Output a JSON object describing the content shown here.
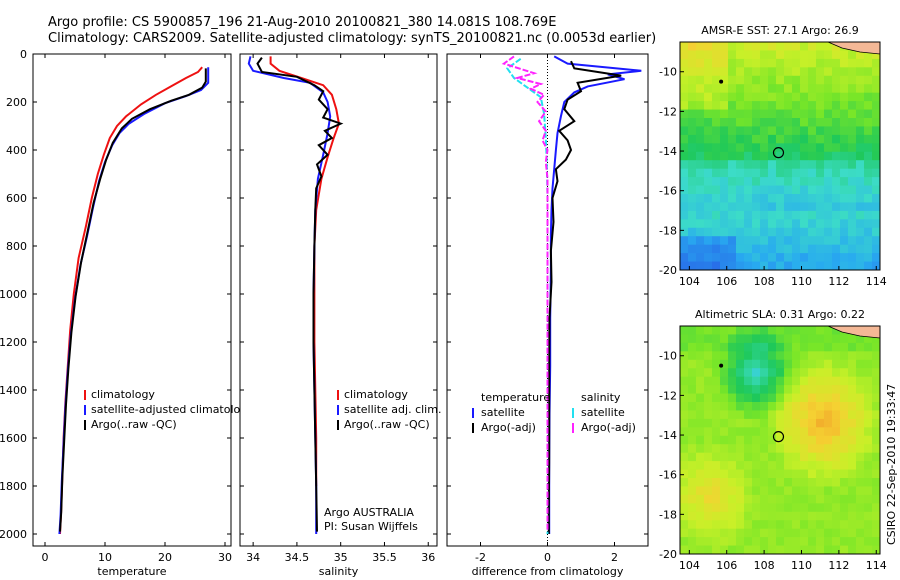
{
  "header": {
    "line1": "Argo profile: CS 5900857_196 21-Aug-2010 20100821_380 14.081S 108.769E",
    "line2": "Climatology: CARS2009. Satellite-adjusted climatology: synTS_20100821.nc (0.0053d earlier)"
  },
  "footer_stamp": "CSIRO 22-Sep-2010 19:33:47",
  "colors": {
    "climatology": "#ee1111",
    "satellite": "#1a1aff",
    "argo": "#000000",
    "sal_satellite": "#22e0f0",
    "sal_argo": "#ff22ff"
  },
  "chart_data": [
    {
      "type": "line",
      "xlabel": "temperature",
      "ylabel": "",
      "xlim": [
        -2,
        31
      ],
      "ylim": [
        2050,
        0
      ],
      "y_inverted": true,
      "xticks": [
        0,
        10,
        20,
        30
      ],
      "yticks": [
        0,
        200,
        400,
        600,
        800,
        1000,
        1200,
        1400,
        1600,
        1800,
        2000
      ],
      "legend": {
        "placement": "lower-right",
        "entries": [
          "climatology",
          "satellite-adjusted climatology",
          "Argo(..raw -QC)"
        ]
      },
      "series": [
        {
          "name": "climatology",
          "points": [
            [
              26.2,
              55
            ],
            [
              25.5,
              75
            ],
            [
              23.5,
              100
            ],
            [
              21.0,
              135
            ],
            [
              18.5,
              170
            ],
            [
              16.0,
              210
            ],
            [
              13.5,
              260
            ],
            [
              12.0,
              300
            ],
            [
              10.8,
              350
            ],
            [
              9.8,
              420
            ],
            [
              8.8,
              500
            ],
            [
              7.8,
              600
            ],
            [
              6.8,
              720
            ],
            [
              5.6,
              850
            ],
            [
              4.8,
              1000
            ],
            [
              4.2,
              1150
            ],
            [
              3.8,
              1300
            ],
            [
              3.4,
              1450
            ],
            [
              3.1,
              1600
            ],
            [
              2.9,
              1750
            ],
            [
              2.7,
              1900
            ],
            [
              2.5,
              2000
            ]
          ]
        },
        {
          "name": "satellite-adjusted climatology",
          "points": [
            [
              27.2,
              55
            ],
            [
              27.2,
              120
            ],
            [
              26.0,
              150
            ],
            [
              23.5,
              175
            ],
            [
              20.0,
              205
            ],
            [
              16.5,
              250
            ],
            [
              14.0,
              290
            ],
            [
              12.4,
              330
            ],
            [
              11.2,
              380
            ],
            [
              10.0,
              450
            ],
            [
              9.0,
              530
            ],
            [
              8.0,
              640
            ],
            [
              7.0,
              760
            ],
            [
              5.9,
              880
            ],
            [
              5.0,
              1020
            ],
            [
              4.3,
              1170
            ],
            [
              3.8,
              1320
            ],
            [
              3.4,
              1470
            ],
            [
              3.1,
              1620
            ],
            [
              2.8,
              1780
            ],
            [
              2.6,
              1920
            ],
            [
              2.4,
              2000
            ]
          ]
        },
        {
          "name": "Argo(..raw -QC)",
          "points": [
            [
              26.8,
              60
            ],
            [
              26.8,
              115
            ],
            [
              26.2,
              140
            ],
            [
              24.0,
              170
            ],
            [
              21.0,
              195
            ],
            [
              17.5,
              230
            ],
            [
              14.5,
              270
            ],
            [
              12.8,
              310
            ],
            [
              11.3,
              370
            ],
            [
              10.2,
              440
            ],
            [
              9.2,
              520
            ],
            [
              8.1,
              620
            ],
            [
              7.1,
              740
            ],
            [
              6.0,
              870
            ],
            [
              5.1,
              1010
            ],
            [
              4.4,
              1160
            ],
            [
              3.9,
              1310
            ],
            [
              3.5,
              1460
            ],
            [
              3.2,
              1610
            ],
            [
              2.9,
              1760
            ],
            [
              2.7,
              1910
            ],
            [
              2.5,
              1990
            ]
          ]
        }
      ]
    },
    {
      "type": "line",
      "xlabel": "salinity",
      "ylabel": "",
      "xlim": [
        33.85,
        36.1
      ],
      "ylim": [
        2050,
        0
      ],
      "y_inverted": true,
      "xticks": [
        34,
        34.5,
        35,
        35.5,
        36
      ],
      "xtick_labels": [
        "34",
        "34.5",
        "35",
        "35.5",
        "36"
      ],
      "legend": {
        "placement": "lower-right",
        "entries": [
          "climatology",
          "satellite adj. clim.",
          "Argo(..raw -QC)"
        ]
      },
      "annotations": [
        "Argo AUSTRALIA",
        "PI: Susan Wijffels"
      ],
      "series": [
        {
          "name": "climatology",
          "points": [
            [
              34.2,
              10
            ],
            [
              34.2,
              40
            ],
            [
              34.3,
              70
            ],
            [
              34.55,
              100
            ],
            [
              34.8,
              130
            ],
            [
              34.9,
              170
            ],
            [
              34.95,
              230
            ],
            [
              34.98,
              290
            ],
            [
              34.92,
              350
            ],
            [
              34.85,
              430
            ],
            [
              34.78,
              520
            ],
            [
              34.72,
              650
            ],
            [
              34.7,
              800
            ],
            [
              34.7,
              1000
            ],
            [
              34.7,
              1200
            ],
            [
              34.71,
              1400
            ],
            [
              34.72,
              1600
            ],
            [
              34.72,
              1800
            ]
          ]
        },
        {
          "name": "satellite adj. clim.",
          "points": [
            [
              33.97,
              10
            ],
            [
              33.95,
              40
            ],
            [
              34.0,
              70
            ],
            [
              34.35,
              100
            ],
            [
              34.65,
              120
            ],
            [
              34.8,
              160
            ],
            [
              34.85,
              200
            ],
            [
              34.88,
              260
            ],
            [
              34.85,
              330
            ],
            [
              34.8,
              420
            ],
            [
              34.74,
              520
            ],
            [
              34.71,
              650
            ],
            [
              34.7,
              800
            ],
            [
              34.69,
              1000
            ],
            [
              34.69,
              1200
            ],
            [
              34.7,
              1400
            ],
            [
              34.71,
              1600
            ],
            [
              34.72,
              1800
            ],
            [
              34.72,
              2000
            ]
          ]
        },
        {
          "name": "Argo(..raw -QC)",
          "points": [
            [
              34.1,
              15
            ],
            [
              34.05,
              40
            ],
            [
              34.1,
              75
            ],
            [
              34.5,
              95
            ],
            [
              34.7,
              130
            ],
            [
              34.8,
              155
            ],
            [
              34.75,
              190
            ],
            [
              34.85,
              230
            ],
            [
              34.8,
              265
            ],
            [
              35.0,
              290
            ],
            [
              34.82,
              320
            ],
            [
              34.9,
              350
            ],
            [
              34.75,
              380
            ],
            [
              34.85,
              420
            ],
            [
              34.73,
              460
            ],
            [
              34.78,
              510
            ],
            [
              34.72,
              560
            ],
            [
              34.71,
              650
            ],
            [
              34.7,
              800
            ],
            [
              34.69,
              1000
            ],
            [
              34.69,
              1200
            ],
            [
              34.7,
              1400
            ],
            [
              34.71,
              1600
            ],
            [
              34.72,
              1800
            ],
            [
              34.73,
              1990
            ]
          ]
        }
      ]
    },
    {
      "type": "line",
      "xlabel": "difference from climatology",
      "ylabel": "",
      "xlim": [
        -3,
        3
      ],
      "ylim": [
        2050,
        0
      ],
      "y_inverted": true,
      "xticks": [
        -2,
        0,
        2
      ],
      "legend": {
        "placement": "lower-center",
        "groups": [
          {
            "heading": "temperature",
            "entries": [
              "satellite",
              "Argo(-adj)"
            ]
          },
          {
            "heading": "salinity",
            "entries": [
              "satellite",
              "Argo(-adj)"
            ]
          }
        ]
      },
      "series": [
        {
          "name": "temperature satellite",
          "color_key": "satellite",
          "points": [
            [
              0.2,
              10
            ],
            [
              0.6,
              40
            ],
            [
              2.8,
              70
            ],
            [
              1.8,
              85
            ],
            [
              2.3,
              105
            ],
            [
              1.2,
              135
            ],
            [
              0.8,
              160
            ],
            [
              0.5,
              200
            ],
            [
              0.4,
              260
            ],
            [
              0.3,
              330
            ],
            [
              0.25,
              400
            ],
            [
              0.2,
              480
            ],
            [
              0.15,
              560
            ],
            [
              0.12,
              650
            ],
            [
              0.1,
              750
            ],
            [
              0.1,
              900
            ],
            [
              0.08,
              1100
            ],
            [
              0.08,
              1300
            ],
            [
              0.06,
              1500
            ],
            [
              0.05,
              1700
            ],
            [
              0.05,
              1900
            ],
            [
              0.05,
              2000
            ]
          ]
        },
        {
          "name": "temperature Argo(-adj)",
          "color_key": "argo",
          "points": [
            [
              0.7,
              30
            ],
            [
              0.8,
              60
            ],
            [
              2.2,
              90
            ],
            [
              0.9,
              120
            ],
            [
              1.0,
              155
            ],
            [
              0.6,
              190
            ],
            [
              0.5,
              230
            ],
            [
              0.8,
              280
            ],
            [
              0.35,
              320
            ],
            [
              0.6,
              360
            ],
            [
              0.7,
              400
            ],
            [
              0.55,
              440
            ],
            [
              0.25,
              480
            ],
            [
              0.3,
              530
            ],
            [
              0.15,
              600
            ],
            [
              0.18,
              700
            ],
            [
              0.1,
              820
            ],
            [
              0.12,
              950
            ],
            [
              0.06,
              1100
            ],
            [
              0.05,
              1300
            ],
            [
              0.05,
              1500
            ],
            [
              0.05,
              1700
            ],
            [
              0.04,
              1900
            ],
            [
              0.04,
              2000
            ]
          ]
        },
        {
          "name": "salinity satellite",
          "color_key": "sal_satellite",
          "points": [
            [
              -0.8,
              20
            ],
            [
              -1.2,
              60
            ],
            [
              -1.0,
              100
            ],
            [
              -0.6,
              140
            ],
            [
              -0.2,
              180
            ],
            [
              -0.1,
              250
            ],
            [
              -0.05,
              350
            ],
            [
              -0.02,
              450
            ],
            [
              0,
              600
            ],
            [
              0,
              800
            ],
            [
              0,
              1000
            ],
            [
              0,
              1400
            ],
            [
              0,
              1800
            ],
            [
              0,
              2000
            ]
          ]
        },
        {
          "name": "salinity Argo(-adj)",
          "color_key": "sal_argo",
          "points": [
            [
              -1.0,
              10
            ],
            [
              -1.3,
              40
            ],
            [
              -0.4,
              80
            ],
            [
              -0.9,
              100
            ],
            [
              -0.2,
              125
            ],
            [
              -0.5,
              145
            ],
            [
              -0.1,
              170
            ],
            [
              -0.3,
              200
            ],
            [
              -0.05,
              240
            ],
            [
              -0.25,
              280
            ],
            [
              -0.05,
              320
            ],
            [
              -0.15,
              360
            ],
            [
              0,
              400
            ],
            [
              -0.05,
              450
            ],
            [
              0,
              520
            ],
            [
              0,
              700
            ],
            [
              0,
              1000
            ],
            [
              0,
              1400
            ],
            [
              0,
              1800
            ],
            [
              0,
              1990
            ]
          ]
        }
      ]
    },
    {
      "type": "heatmap",
      "title": "AMSR-E SST: 27.1 Argo: 26.9",
      "xlim": [
        103.5,
        114.2
      ],
      "ylim": [
        -20,
        -8.5
      ],
      "xticks": [
        104,
        106,
        108,
        110,
        112,
        114
      ],
      "yticks": [
        -10,
        -12,
        -14,
        -16,
        -18,
        -20
      ],
      "marker": {
        "lon": 108.769,
        "lat": -14.081
      },
      "island": {
        "lon": 105.7,
        "lat": -10.5
      }
    },
    {
      "type": "heatmap",
      "title": "Altimetric SLA: 0.31 Argo: 0.22",
      "xlim": [
        103.5,
        114.2
      ],
      "ylim": [
        -20,
        -8.5
      ],
      "xticks": [
        104,
        106,
        108,
        110,
        112,
        114
      ],
      "yticks": [
        -10,
        -12,
        -14,
        -16,
        -18,
        -20
      ],
      "marker": {
        "lon": 108.769,
        "lat": -14.081
      },
      "island": {
        "lon": 105.7,
        "lat": -10.5
      }
    }
  ]
}
